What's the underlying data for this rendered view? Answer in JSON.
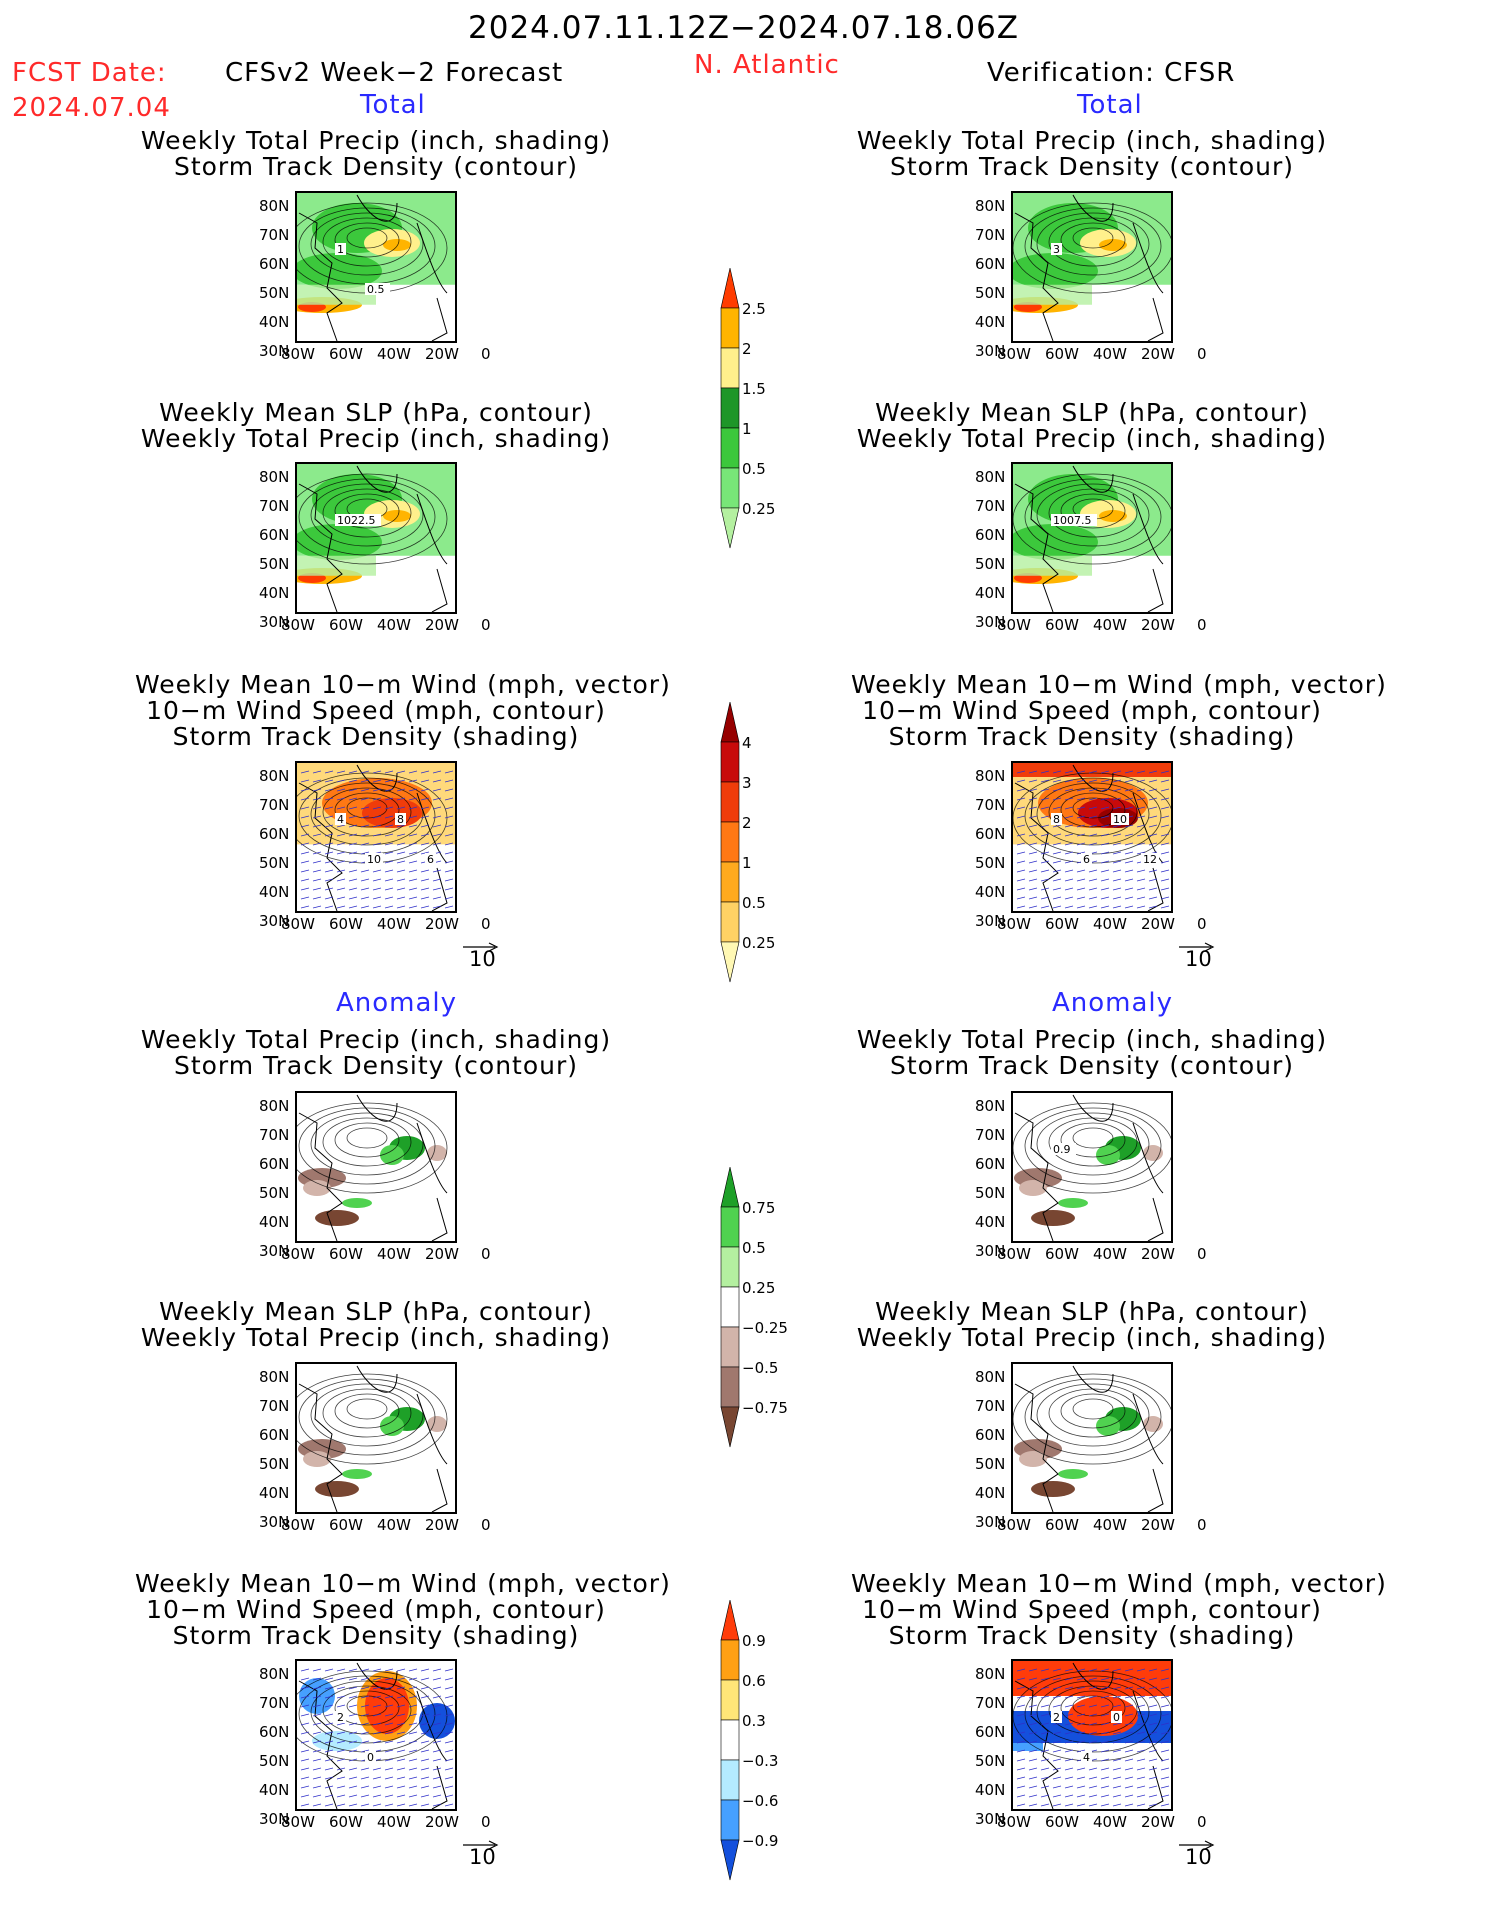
{
  "header": {
    "period": "2024.07.11.12Z−2024.07.18.06Z",
    "fcst_label": "FCST Date:",
    "fcst_date": "2024.07.04",
    "left_model": "CFSv2 Week−2 Forecast",
    "region": "N. Atlantic",
    "right_model": "Verification: CFSR"
  },
  "sections": {
    "total": "Total",
    "anomaly": "Anomaly"
  },
  "panels": {
    "precip_storm": [
      "Weekly Total Precip (inch, shading)",
      "Storm Track Density (contour)"
    ],
    "slp_precip": [
      "Weekly Mean SLP (hPa, contour)",
      "Weekly Total Precip (inch, shading)"
    ],
    "wind_storm": [
      "Weekly Mean 10−m Wind (mph, vector)",
      "10−m Wind Speed (mph, contour)",
      "Storm Track Density (shading)"
    ]
  },
  "axes": {
    "lat": [
      "80N",
      "70N",
      "60N",
      "50N",
      "40N",
      "30N"
    ],
    "lon": [
      "80W",
      "60W",
      "40W",
      "20W",
      "0"
    ]
  },
  "contour_labels": {
    "fc_total_precip": [
      "1",
      "0.5"
    ],
    "ver_total_precip": [
      "3"
    ],
    "fc_total_slp": [
      "1022.5"
    ],
    "ver_total_slp": [
      "1007.5"
    ],
    "fc_total_wind": [
      "4",
      "10",
      "8",
      "6"
    ],
    "ver_total_wind": [
      "8",
      "6",
      "10",
      "12"
    ],
    "ver_anom_precip": [
      "0.9"
    ],
    "fc_anom_wind": [
      "2",
      "0"
    ],
    "ver_anom_wind": [
      "2",
      "4",
      "0"
    ]
  },
  "vector_scale": "10",
  "colorbars": {
    "total_precip": [
      "2.5",
      "2",
      "1.5",
      "1",
      "0.5",
      "0.25"
    ],
    "total_storm": [
      "4",
      "3",
      "2",
      "1",
      "0.5",
      "0.25"
    ],
    "anom_precip": [
      "0.75",
      "0.5",
      "0.25",
      "−0.25",
      "−0.5",
      "−0.75"
    ],
    "anom_storm": [
      "0.9",
      "0.6",
      "0.3",
      "−0.3",
      "−0.6",
      "−0.9"
    ]
  },
  "colors": {
    "precip": [
      "#b4f0a0",
      "#78e678",
      "#3cc83c",
      "#1e9628",
      "#fff08c",
      "#ffb400",
      "#ff3c00"
    ],
    "storm": [
      "#fff8b4",
      "#ffd264",
      "#ffaa1e",
      "#ff7814",
      "#f03c0a",
      "#c80a0a",
      "#960000"
    ],
    "anom_precip": [
      "#784632",
      "#a0786e",
      "#d2b4aa",
      "#ffffff",
      "#b4f0a0",
      "#50d250",
      "#1ea028"
    ],
    "anom_storm": [
      "#1450dc",
      "#46a0ff",
      "#b4ebff",
      "#ffffff",
      "#ffe678",
      "#ffa014",
      "#ff3c0a"
    ]
  }
}
